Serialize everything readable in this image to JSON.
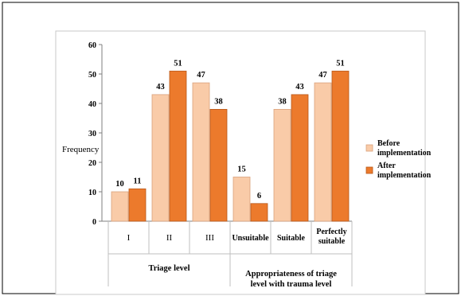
{
  "chart_data": {
    "type": "bar",
    "ylabel": "Frequency",
    "ylim": [
      0,
      60
    ],
    "yticks": [
      0,
      10,
      20,
      30,
      40,
      50,
      60
    ],
    "grid": false,
    "legend_position": "right",
    "categories": [
      "I",
      "II",
      "III",
      "Unsuitable",
      "Suitable",
      "Perfectly suitable"
    ],
    "category_lines": [
      [
        "I"
      ],
      [
        "II"
      ],
      [
        "III"
      ],
      [
        "Unsuitable"
      ],
      [
        "Suitable"
      ],
      [
        "Perfectly",
        "suitable"
      ]
    ],
    "groups": [
      {
        "label": "Triage level",
        "lines": [
          "Triage level"
        ],
        "span": [
          0,
          2
        ]
      },
      {
        "label": "Appropriateness of triage level with trauma level",
        "lines": [
          "Appropriateness of triage",
          "level with trauma level"
        ],
        "span": [
          3,
          5
        ]
      }
    ],
    "series": [
      {
        "name": "Before implementation",
        "lines": [
          "Before",
          "implementation"
        ],
        "color": "#f9cba8",
        "stroke": "#d9a27c",
        "values": [
          10,
          43,
          47,
          15,
          38,
          47
        ]
      },
      {
        "name": "After implementation",
        "lines": [
          "After",
          "implementation"
        ],
        "color": "#ec7a2c",
        "stroke": "#b8571a",
        "values": [
          11,
          51,
          38,
          6,
          43,
          51
        ]
      }
    ]
  }
}
